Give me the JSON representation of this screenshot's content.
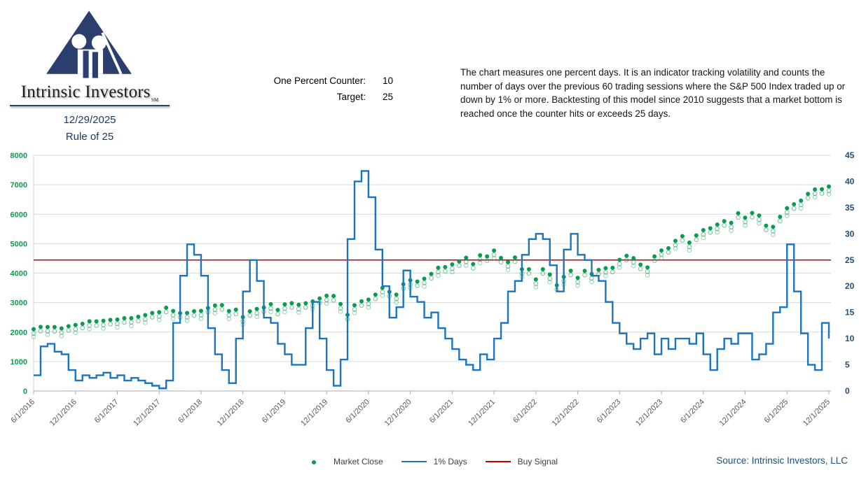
{
  "header": {
    "brand": "Intrinsic Investors",
    "brand_mark": "SM",
    "date": "12/29/2025",
    "subtitle": "Rule of 25",
    "counter": {
      "label": "One Percent Counter:",
      "value": "10",
      "target_label": "Target:",
      "target_value": "25"
    },
    "description": "The chart measures one percent days.  It is an indicator tracking volatility and counts the number of days over the previous 60 trading sessions where the S&P 500 Index traded up or down by 1% or more. Backtesting of this model since 2010 suggests that a market bottom is reached once the counter hits or exceeds 25 days."
  },
  "chart_data": {
    "type": "line",
    "frequency": "monthly",
    "x_start": "2016-06",
    "x_end": "2025-12",
    "x_tick_labels": [
      "6/1/2016",
      "12/1/2016",
      "6/1/2017",
      "12/1/2017",
      "6/1/2018",
      "12/1/2018",
      "6/1/2019",
      "12/1/2019",
      "6/1/2020",
      "12/1/2020",
      "6/1/2021",
      "12/1/2021",
      "6/1/2022",
      "12/1/2022",
      "6/1/2023",
      "12/1/2023",
      "6/1/2024",
      "12/1/2024",
      "6/1/2025",
      "12/1/2025"
    ],
    "left_axis": {
      "min": 0,
      "max": 8000,
      "step": 1000,
      "color": "#0A9C4E"
    },
    "right_axis": {
      "min": 0,
      "max": 45,
      "step": 5,
      "color": "#1F4E79"
    },
    "grid": true,
    "legend_position": "bottom",
    "series": [
      {
        "name": "Market Close",
        "type": "scatter",
        "axis": "left",
        "color": "#0A9C4E",
        "values": [
          2099,
          2174,
          2171,
          2168,
          2126,
          2199,
          2239,
          2279,
          2364,
          2363,
          2384,
          2412,
          2423,
          2470,
          2472,
          2519,
          2575,
          2648,
          2674,
          2824,
          2714,
          2641,
          2648,
          2705,
          2718,
          2816,
          2902,
          2914,
          2712,
          2760,
          2507,
          2704,
          2784,
          2834,
          2946,
          2752,
          2942,
          2980,
          2926,
          2977,
          3038,
          3141,
          3231,
          3226,
          2954,
          2585,
          2912,
          3044,
          3100,
          3271,
          3500,
          3363,
          3270,
          3622,
          3756,
          3714,
          3811,
          3973,
          4181,
          4204,
          4298,
          4395,
          4523,
          4308,
          4605,
          4567,
          4766,
          4516,
          4374,
          4530,
          4132,
          4132,
          3785,
          4130,
          3955,
          3586,
          3872,
          4080,
          3840,
          4077,
          3970,
          4109,
          4169,
          4180,
          4450,
          4589,
          4508,
          4288,
          4194,
          4568,
          4770,
          4846,
          5096,
          5254,
          5036,
          5278,
          5460,
          5522,
          5648,
          5762,
          5705,
          6032,
          5882,
          6041,
          5955,
          5612,
          5569,
          5912,
          6205,
          6339,
          6460,
          6688,
          6840,
          6849,
          6940
        ]
      },
      {
        "name": "1% Days",
        "type": "step-line",
        "axis": "right",
        "color": "#1B74BC",
        "values": [
          3,
          8.5,
          9,
          7.5,
          7,
          4,
          2,
          3,
          2.5,
          3,
          3.5,
          2.5,
          3,
          2,
          2.5,
          2,
          1.5,
          1,
          0.5,
          2,
          13,
          22,
          28,
          26,
          22,
          12,
          7,
          4,
          1.5,
          10,
          19,
          25,
          21,
          14,
          13,
          9,
          7,
          5,
          5,
          12,
          17,
          10,
          4,
          1,
          6,
          29,
          40,
          42,
          37,
          27,
          20,
          14,
          16,
          23,
          18,
          17,
          14,
          15,
          12,
          10,
          8,
          6,
          5,
          4,
          7,
          6,
          10,
          13,
          19,
          21,
          26,
          29,
          30,
          29,
          24,
          19,
          27,
          30,
          26,
          25,
          22,
          21,
          17,
          13,
          11,
          9,
          8,
          10,
          11,
          7,
          10,
          8,
          10,
          10,
          9,
          11,
          7,
          4,
          8,
          10,
          9,
          11,
          11,
          6,
          7,
          9,
          15,
          16,
          28,
          19,
          11,
          5,
          4,
          13,
          10
        ]
      },
      {
        "name": "Buy Signal",
        "type": "hline",
        "axis": "right",
        "value": 25,
        "color": "#C00000"
      }
    ]
  },
  "footer": {
    "source": "Source: Intrinsic Investors, LLC"
  }
}
